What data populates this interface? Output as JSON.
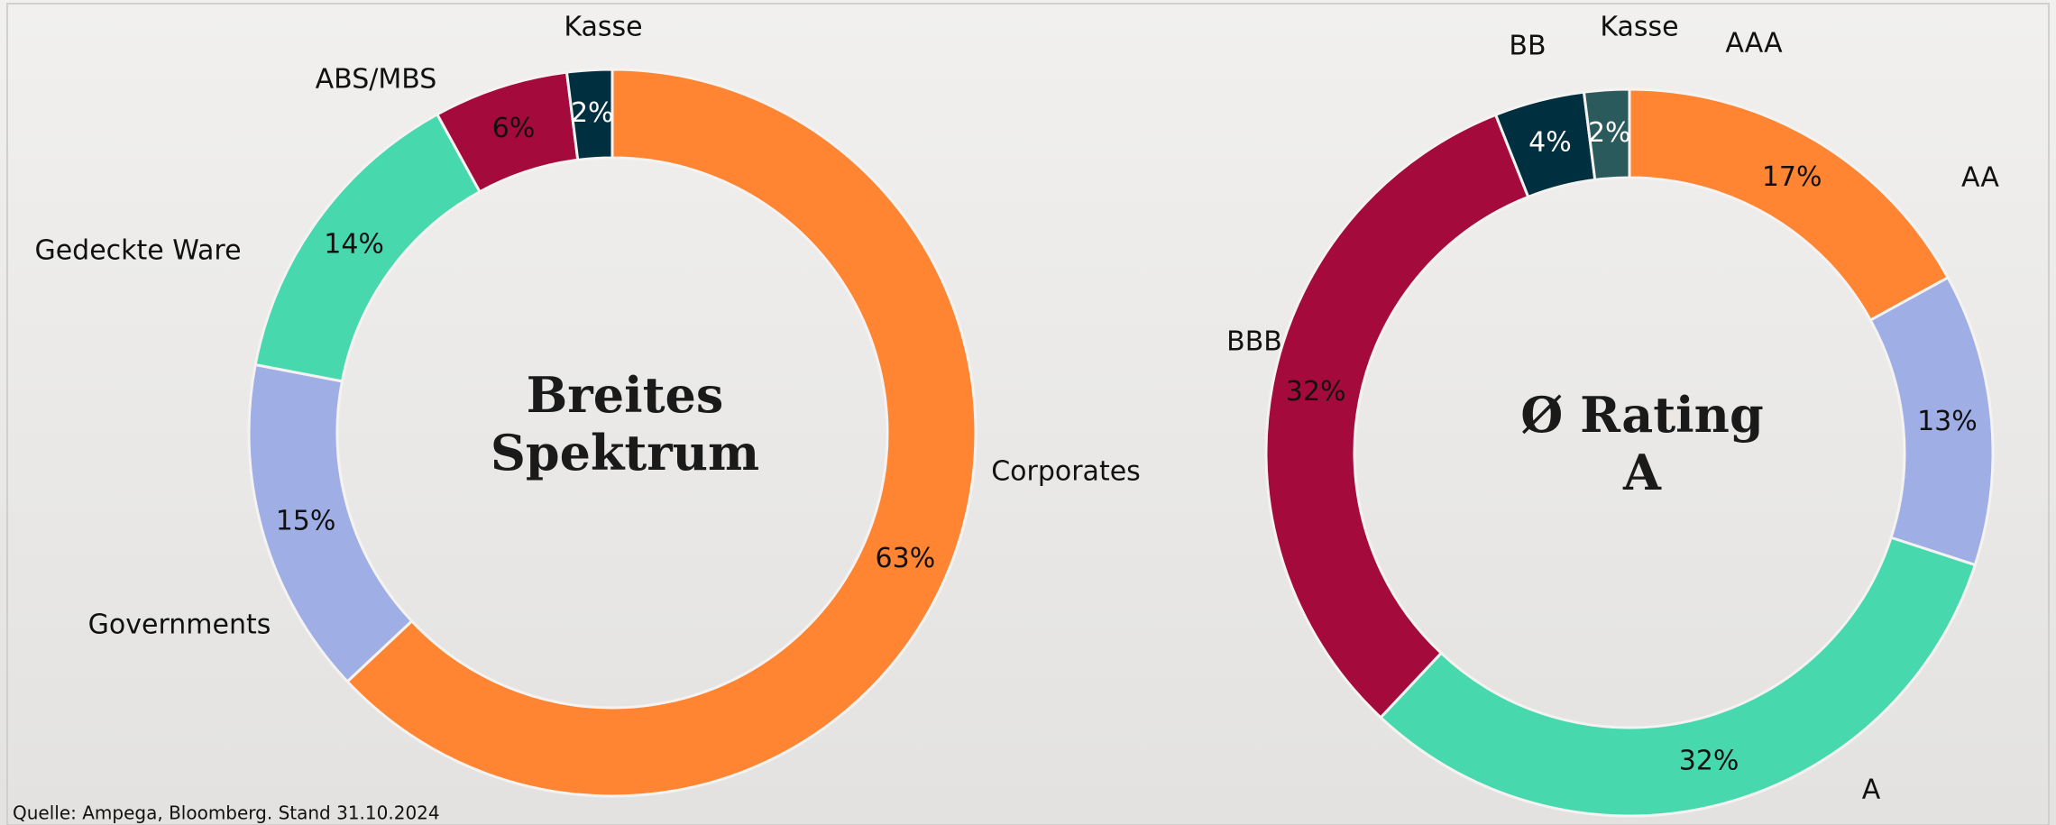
{
  "chart_data": [
    {
      "type": "donut",
      "center_text": [
        "Breites",
        "Spektrum"
      ],
      "categories": [
        "Corporates",
        "Governments",
        "Gedeckte Ware",
        "ABS/MBS",
        "Kasse"
      ],
      "values": [
        63,
        15,
        14,
        6,
        2
      ],
      "value_labels": [
        "63%",
        "15%",
        "14%",
        "6%",
        "2%"
      ],
      "colors": [
        "#ff8533",
        "#a0aee6",
        "#47d8ae",
        "#a50a3c",
        "#00303f"
      ]
    },
    {
      "type": "donut",
      "center_text": [
        "Ø Rating",
        "A"
      ],
      "categories": [
        "AAA",
        "AA",
        "A",
        "BBB",
        "BB",
        "Kasse"
      ],
      "values": [
        17,
        13,
        32,
        32,
        4,
        2
      ],
      "value_labels": [
        "17%",
        "13%",
        "32%",
        "32%",
        "4%",
        "2%"
      ],
      "colors": [
        "#ff8533",
        "#a0aee6",
        "#47d8ae",
        "#a50a3c",
        "#00303f",
        "#2b5a5c"
      ]
    }
  ],
  "source": "Quelle: Ampega, Bloomberg. Stand 31.10.2024"
}
